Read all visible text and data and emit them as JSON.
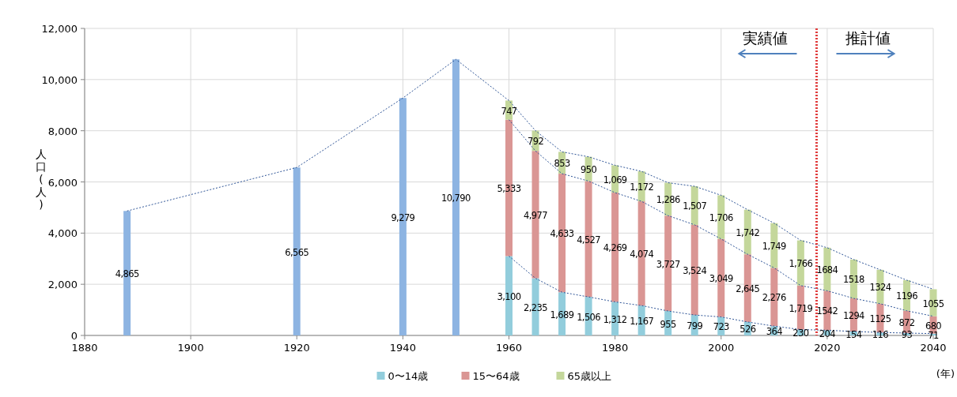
{
  "chart_data": {
    "type": "bar",
    "stacked": true,
    "xlabel": "(年)",
    "ylabel": "人口(人)",
    "x": [
      1888,
      1920,
      1940,
      1950,
      1960,
      1965,
      1970,
      1975,
      1980,
      1985,
      1990,
      1995,
      2000,
      2005,
      2010,
      2015,
      2020,
      2025,
      2030,
      2035,
      2040
    ],
    "xlim": [
      1880,
      2040
    ],
    "xticks": [
      1880,
      1900,
      1920,
      1940,
      1960,
      1980,
      2000,
      2020,
      2040
    ],
    "ylim": [
      0,
      12000
    ],
    "yticks": [
      0,
      {
        "value": 2000,
        "label": "2,000"
      },
      {
        "value": 4000,
        "label": "4,000"
      },
      {
        "value": 6000,
        "label": "6,000"
      },
      {
        "value": 8000,
        "label": "8,000"
      },
      {
        "value": 10000,
        "label": "10,000"
      },
      {
        "value": 12000,
        "label": "12,000"
      }
    ],
    "grid": true,
    "legend": "bottom",
    "ref_lines": [
      {
        "axis": "x",
        "value": 2018,
        "color": "#e03c3c",
        "line_style": "dotted"
      }
    ],
    "annotations": [
      "実績値",
      "推計値"
    ],
    "series": [
      {
        "color": "#8db4e2",
        "values": [
          4865,
          6565,
          9279,
          10790,
          null,
          null,
          null,
          null,
          null,
          null,
          null,
          null,
          null,
          null,
          null,
          null,
          null,
          null,
          null,
          null,
          null
        ],
        "value_labels": [
          "4,865",
          "6,565",
          "9,279",
          "10,790",
          null,
          null,
          null,
          null,
          null,
          null,
          null,
          null,
          null,
          null,
          null,
          null,
          null,
          null,
          null,
          null,
          null
        ]
      },
      {
        "name": "0〜14歳",
        "color": "#92cddc",
        "values": [
          null,
          null,
          null,
          null,
          3100,
          2235,
          1689,
          1506,
          1312,
          1167,
          955,
          799,
          723,
          526,
          364,
          230,
          204,
          154,
          116,
          93,
          71
        ],
        "value_labels": [
          null,
          null,
          null,
          null,
          "3,100",
          "2,235",
          "1,689",
          "1,506",
          "1,312",
          "1,167",
          "955",
          "799",
          "723",
          "526",
          "364",
          "230",
          "204",
          "154",
          "116",
          "93",
          "71"
        ]
      },
      {
        "name": "15〜64歳",
        "color": "#da9694",
        "values": [
          null,
          null,
          null,
          null,
          5333,
          4977,
          4633,
          4527,
          4269,
          4074,
          3727,
          3524,
          3049,
          2645,
          2276,
          1719,
          1542,
          1294,
          1125,
          872,
          680
        ],
        "value_labels": [
          null,
          null,
          null,
          null,
          "5,333",
          "4,977",
          "4,633",
          "4,527",
          "4,269",
          "4,074",
          "3,727",
          "3,524",
          "3,049",
          "2,645",
          "2,276",
          "1,719",
          "1542",
          "1294",
          "1125",
          "872",
          "680"
        ]
      },
      {
        "name": "65歳以上",
        "color": "#c4d79b",
        "values": [
          null,
          null,
          null,
          null,
          747,
          792,
          853,
          950,
          1069,
          1172,
          1286,
          1507,
          1706,
          1742,
          1749,
          1766,
          1684,
          1518,
          1324,
          1196,
          1055
        ],
        "value_labels": [
          null,
          null,
          null,
          null,
          "747",
          "792",
          "853",
          "950",
          "1,069",
          "1,172",
          "1,286",
          "1,507",
          "1,706",
          "1,742",
          "1,749",
          "1,766",
          "1684",
          "1518",
          "1324",
          "1196",
          "1055"
        ]
      },
      {
        "type": "line",
        "line_style": "dotted",
        "color": "#2f5597",
        "values": [
          4865,
          6565,
          9279,
          10790,
          9180,
          8004,
          7175,
          6983,
          6650,
          6413,
          5968,
          5830,
          5478,
          4913,
          4389,
          3715,
          3430,
          2966,
          2565,
          2161,
          1806
        ]
      },
      {
        "type": "line",
        "line_style": "dotted",
        "color": "#2f5597",
        "values": [
          null,
          null,
          null,
          null,
          8433,
          7212,
          6322,
          6033,
          5581,
          5241,
          4682,
          4323,
          3772,
          3171,
          2640,
          1949,
          1746,
          1448,
          1241,
          965,
          751
        ]
      },
      {
        "type": "line",
        "line_style": "dotted",
        "color": "#2f5597",
        "values": [
          null,
          null,
          null,
          null,
          3100,
          2235,
          1689,
          1506,
          1312,
          1167,
          955,
          799,
          723,
          526,
          364,
          230,
          204,
          154,
          116,
          93,
          71
        ]
      }
    ]
  }
}
